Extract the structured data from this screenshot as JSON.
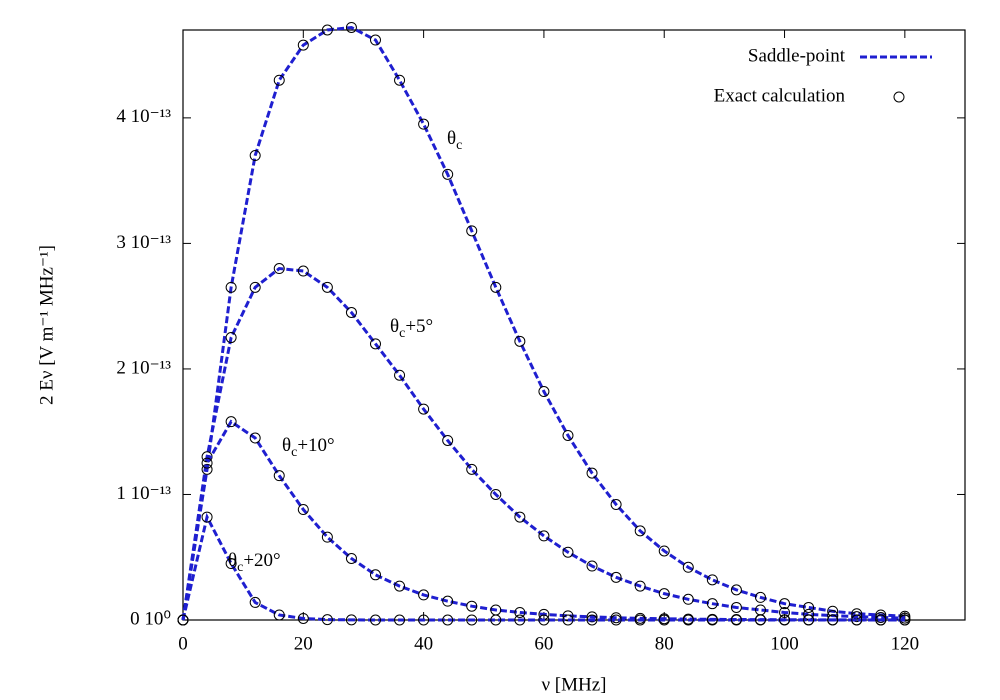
{
  "chart_data": {
    "type": "line",
    "xlabel": "ν [MHz]",
    "ylabel": "2 Eν [V m⁻¹ MHz⁻¹]",
    "xlim": [
      0,
      130
    ],
    "ylim": [
      0,
      4.7e-13
    ],
    "xticks": [
      0,
      20,
      40,
      60,
      80,
      100,
      120
    ],
    "yticks": [
      {
        "value": 0,
        "label": "0 10⁰"
      },
      {
        "value": 1e-13,
        "label": "1 10⁻¹³"
      },
      {
        "value": 2e-13,
        "label": "2 10⁻¹³"
      },
      {
        "value": 3e-13,
        "label": "3 10⁻¹³"
      },
      {
        "value": 4e-13,
        "label": "4 10⁻¹³"
      }
    ],
    "legend_position": "top-right",
    "legend": [
      {
        "name": "Saddle-point",
        "color": "#1f1fd0",
        "style": "dashed"
      },
      {
        "name": "Exact calculation",
        "color": "#000000",
        "style": "circle"
      }
    ],
    "x": [
      0,
      4,
      8,
      12,
      16,
      20,
      24,
      28,
      32,
      36,
      40,
      44,
      48,
      52,
      56,
      60,
      64,
      68,
      72,
      76,
      80,
      84,
      88,
      92,
      96,
      100,
      104,
      108,
      112,
      116,
      120
    ],
    "curves": [
      {
        "label": {
          "symbol": "θ",
          "sub": "c",
          "suffix": ""
        },
        "values": [
          0,
          1.2e-13,
          2.65e-13,
          3.7e-13,
          4.3e-13,
          4.58e-13,
          4.7e-13,
          4.72e-13,
          4.62e-13,
          4.3e-13,
          3.95e-13,
          3.55e-13,
          3.1e-13,
          2.65e-13,
          2.22e-13,
          1.82e-13,
          1.47e-13,
          1.17e-13,
          9.2e-14,
          7.1e-14,
          5.5e-14,
          4.2e-14,
          3.2e-14,
          2.4e-14,
          1.8e-14,
          1.3e-14,
          1e-14,
          7e-15,
          5e-15,
          4e-15,
          3e-15
        ]
      },
      {
        "label": {
          "symbol": "θ",
          "sub": "c",
          "suffix": "+5°"
        },
        "values": [
          0,
          1.3e-13,
          2.25e-13,
          2.65e-13,
          2.8e-13,
          2.78e-13,
          2.65e-13,
          2.45e-13,
          2.2e-13,
          1.95e-13,
          1.68e-13,
          1.43e-13,
          1.2e-13,
          1e-13,
          8.2e-14,
          6.7e-14,
          5.4e-14,
          4.3e-14,
          3.4e-14,
          2.7e-14,
          2.1e-14,
          1.65e-14,
          1.3e-14,
          1e-14,
          8e-15,
          6e-15,
          4.5e-15,
          3.5e-15,
          2.7e-15,
          2e-15,
          1.5e-15
        ]
      },
      {
        "label": {
          "symbol": "θ",
          "sub": "c",
          "suffix": "+10°"
        },
        "values": [
          0,
          1.25e-13,
          1.58e-13,
          1.45e-13,
          1.15e-13,
          8.8e-14,
          6.6e-14,
          4.9e-14,
          3.6e-14,
          2.7e-14,
          2e-14,
          1.5e-14,
          1.1e-14,
          8e-15,
          6e-15,
          4.5e-15,
          3.3e-15,
          2.5e-15,
          1.8e-15,
          1.3e-15,
          1e-15,
          7e-16,
          5e-16,
          4e-16,
          3e-16,
          2e-16,
          1.5e-16,
          1e-16,
          8e-17,
          6e-17,
          4e-17
        ]
      },
      {
        "label": {
          "symbol": "θ",
          "sub": "c",
          "suffix": "+20°"
        },
        "values": [
          0,
          8.2e-14,
          4.5e-14,
          1.4e-14,
          4e-15,
          1.2e-15,
          3e-16,
          1e-16,
          0,
          0,
          0,
          0,
          0,
          0,
          0,
          0,
          0,
          0,
          0,
          0,
          0,
          0,
          0,
          0,
          0,
          0,
          0,
          0,
          0,
          0,
          0
        ]
      }
    ]
  }
}
